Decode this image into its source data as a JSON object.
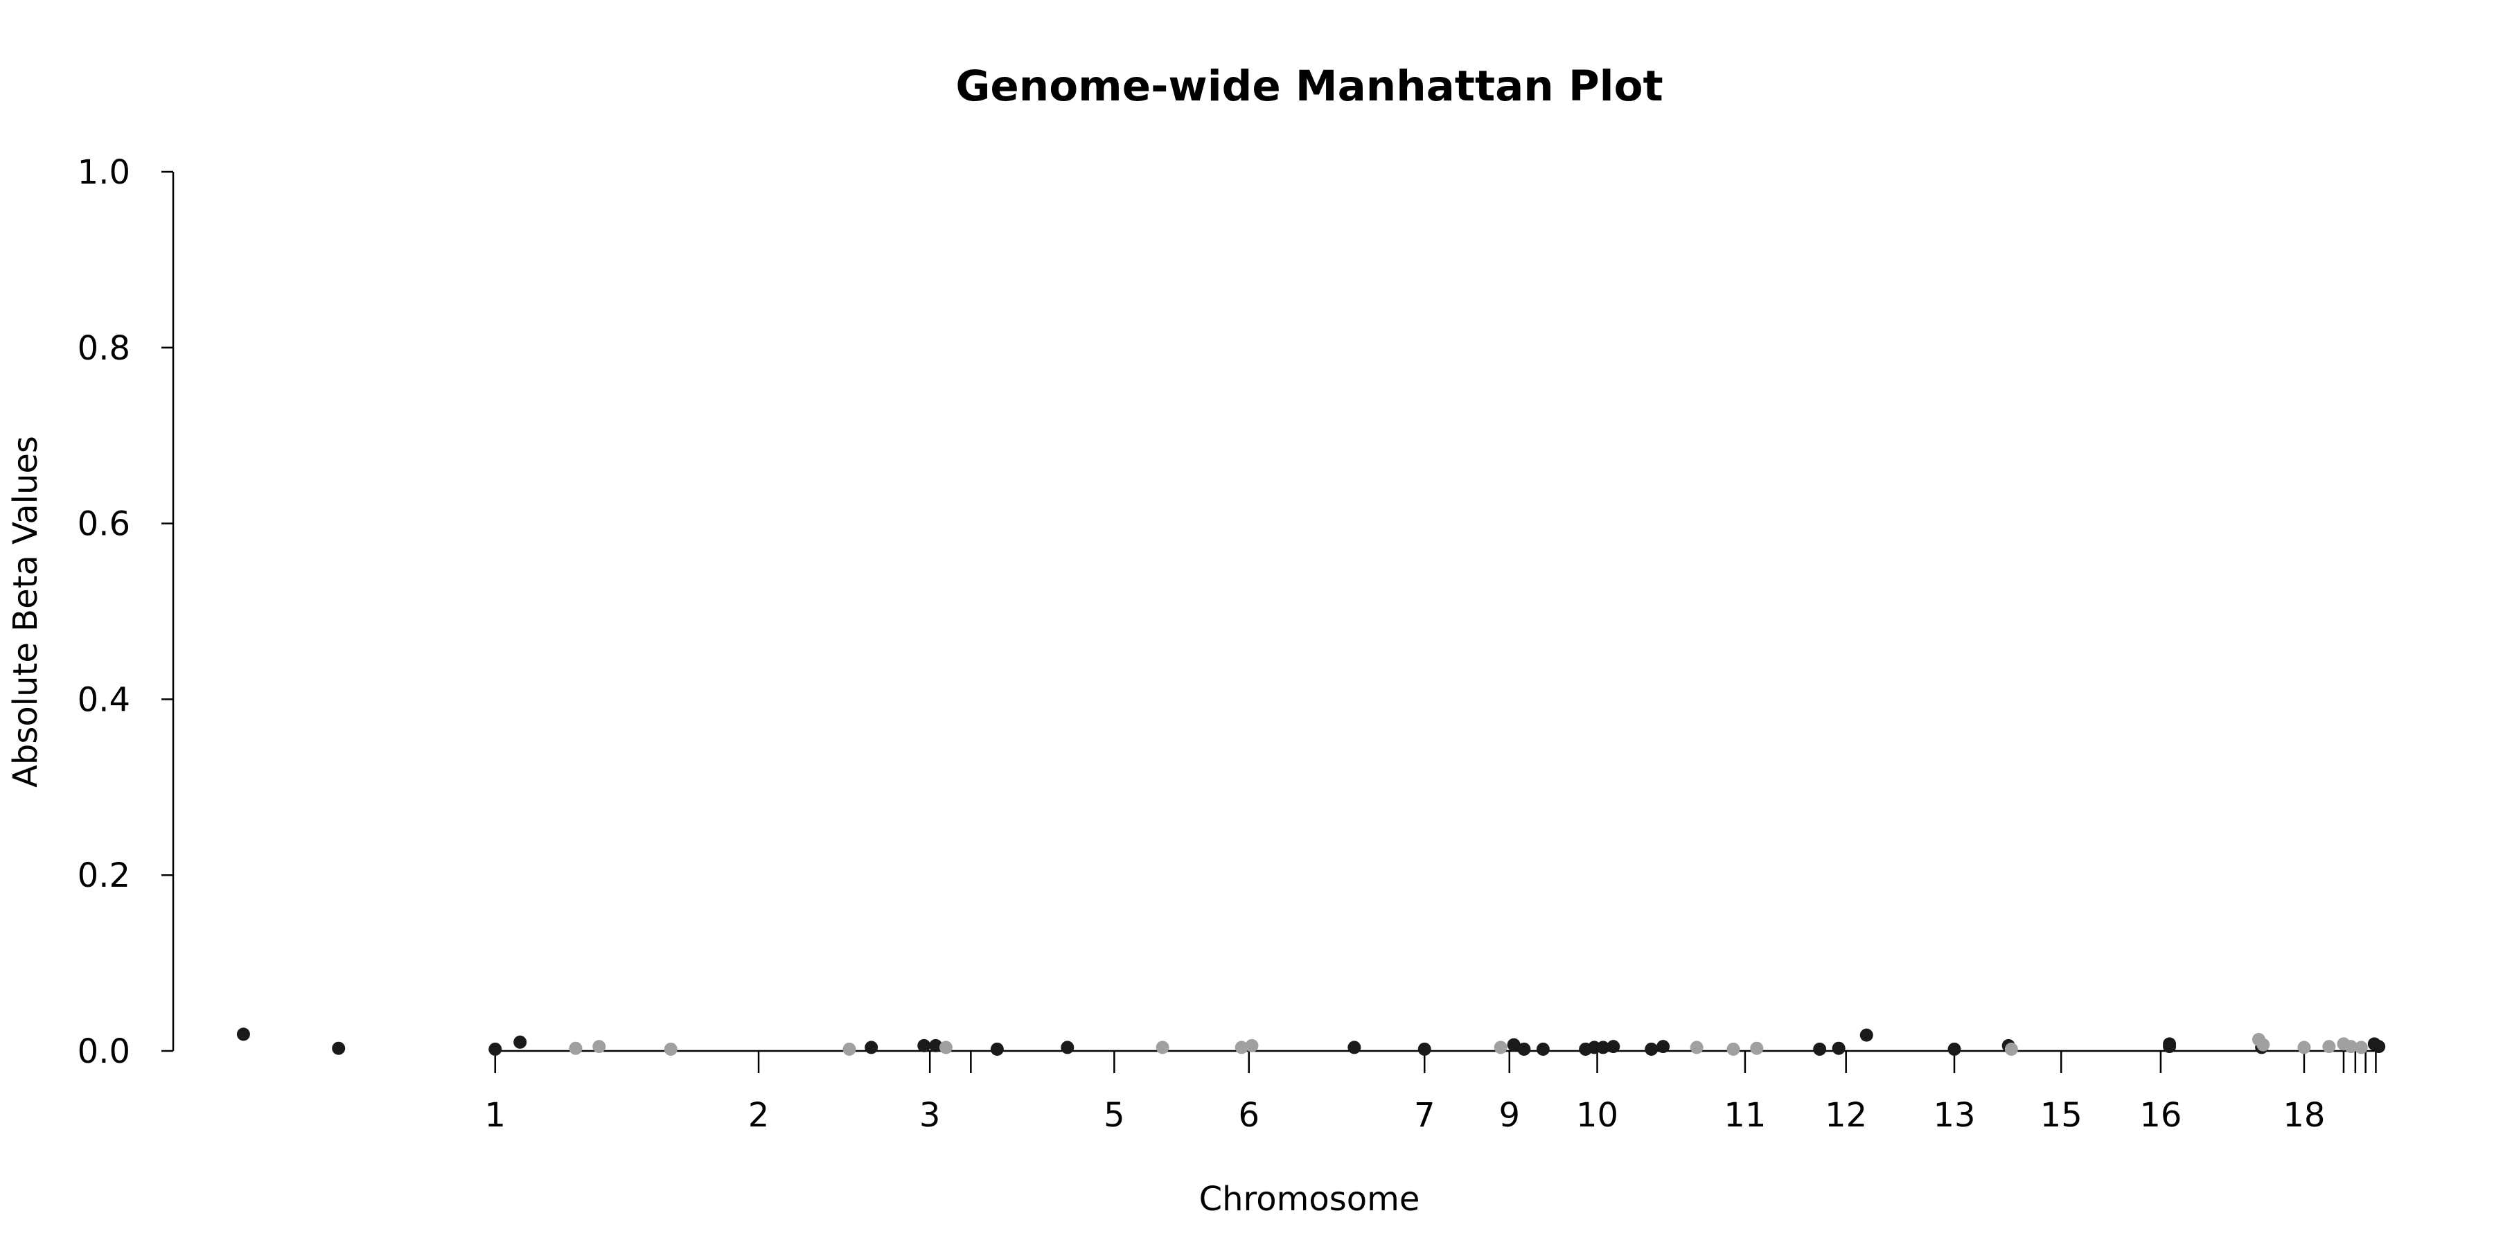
{
  "chart_data": {
    "type": "scatter",
    "title": "Genome-wide Manhattan Plot",
    "xlabel": "Chromosome",
    "ylabel": "Absolute Beta Values",
    "ylim": [
      0,
      1.0
    ],
    "y_ticks": [
      0.0,
      0.2,
      0.4,
      0.6,
      0.8,
      1.0
    ],
    "y_tick_labels": [
      "0.0",
      "0.2",
      "0.4",
      "0.6",
      "0.8",
      "1.0"
    ],
    "x_ticks": [
      {
        "label": "1",
        "x": 0.2
      },
      {
        "label": "2",
        "x": 2.0
      },
      {
        "label": "3",
        "x": 3.17
      },
      {
        "label": "",
        "x": 3.45
      },
      {
        "label": "5",
        "x": 4.43
      },
      {
        "label": "6",
        "x": 5.35
      },
      {
        "label": "7",
        "x": 6.55
      },
      {
        "label": "9",
        "x": 7.13
      },
      {
        "label": "10",
        "x": 7.73
      },
      {
        "label": "11",
        "x": 8.74
      },
      {
        "label": "12",
        "x": 9.43
      },
      {
        "label": "13",
        "x": 10.17
      },
      {
        "label": "15",
        "x": 10.9
      },
      {
        "label": "16",
        "x": 11.58
      },
      {
        "label": "18",
        "x": 12.56
      },
      {
        "label": "",
        "x": 12.83
      },
      {
        "label": "",
        "x": 12.91
      },
      {
        "label": "",
        "x": 12.98
      },
      {
        "label": "",
        "x": 13.05
      }
    ],
    "x_range": [
      -2.0,
      13.1
    ],
    "grid": false,
    "legend": "none",
    "colors": {
      "dark": "#1a1a1a",
      "light": "#a0a0a0"
    },
    "points": [
      {
        "x": -1.52,
        "y": 0.019,
        "c": "dark"
      },
      {
        "x": -0.87,
        "y": 0.003,
        "c": "dark"
      },
      {
        "x": 0.2,
        "y": 0.002,
        "c": "dark"
      },
      {
        "x": 0.37,
        "y": 0.01,
        "c": "dark"
      },
      {
        "x": 0.75,
        "y": 0.003,
        "c": "light"
      },
      {
        "x": 0.91,
        "y": 0.005,
        "c": "light"
      },
      {
        "x": 1.4,
        "y": 0.002,
        "c": "light"
      },
      {
        "x": 2.62,
        "y": 0.002,
        "c": "light"
      },
      {
        "x": 2.77,
        "y": 0.004,
        "c": "dark"
      },
      {
        "x": 3.13,
        "y": 0.006,
        "c": "dark"
      },
      {
        "x": 3.21,
        "y": 0.006,
        "c": "dark"
      },
      {
        "x": 3.28,
        "y": 0.004,
        "c": "light"
      },
      {
        "x": 3.63,
        "y": 0.002,
        "c": "dark"
      },
      {
        "x": 4.11,
        "y": 0.004,
        "c": "dark"
      },
      {
        "x": 4.76,
        "y": 0.004,
        "c": "light"
      },
      {
        "x": 5.3,
        "y": 0.004,
        "c": "light"
      },
      {
        "x": 5.37,
        "y": 0.006,
        "c": "light"
      },
      {
        "x": 6.07,
        "y": 0.004,
        "c": "dark"
      },
      {
        "x": 6.55,
        "y": 0.002,
        "c": "dark"
      },
      {
        "x": 7.07,
        "y": 0.004,
        "c": "light"
      },
      {
        "x": 7.16,
        "y": 0.007,
        "c": "dark"
      },
      {
        "x": 7.23,
        "y": 0.002,
        "c": "dark"
      },
      {
        "x": 7.36,
        "y": 0.002,
        "c": "dark"
      },
      {
        "x": 7.65,
        "y": 0.002,
        "c": "dark"
      },
      {
        "x": 7.71,
        "y": 0.004,
        "c": "dark"
      },
      {
        "x": 7.77,
        "y": 0.004,
        "c": "dark"
      },
      {
        "x": 7.84,
        "y": 0.005,
        "c": "dark"
      },
      {
        "x": 8.1,
        "y": 0.002,
        "c": "dark"
      },
      {
        "x": 8.18,
        "y": 0.005,
        "c": "dark"
      },
      {
        "x": 8.41,
        "y": 0.004,
        "c": "light"
      },
      {
        "x": 8.66,
        "y": 0.002,
        "c": "light"
      },
      {
        "x": 8.82,
        "y": 0.003,
        "c": "light"
      },
      {
        "x": 9.25,
        "y": 0.002,
        "c": "dark"
      },
      {
        "x": 9.38,
        "y": 0.003,
        "c": "dark"
      },
      {
        "x": 9.57,
        "y": 0.018,
        "c": "dark"
      },
      {
        "x": 10.17,
        "y": 0.002,
        "c": "dark"
      },
      {
        "x": 10.54,
        "y": 0.006,
        "c": "dark"
      },
      {
        "x": 10.56,
        "y": 0.002,
        "c": "light"
      },
      {
        "x": 11.64,
        "y": 0.008,
        "c": "dark"
      },
      {
        "x": 11.64,
        "y": 0.005,
        "c": "dark"
      },
      {
        "x": 12.27,
        "y": 0.004,
        "c": "dark"
      },
      {
        "x": 12.25,
        "y": 0.013,
        "c": "light"
      },
      {
        "x": 12.28,
        "y": 0.007,
        "c": "light"
      },
      {
        "x": 12.56,
        "y": 0.004,
        "c": "light"
      },
      {
        "x": 12.73,
        "y": 0.005,
        "c": "light"
      },
      {
        "x": 12.83,
        "y": 0.008,
        "c": "light"
      },
      {
        "x": 12.88,
        "y": 0.005,
        "c": "light"
      },
      {
        "x": 12.95,
        "y": 0.004,
        "c": "light"
      },
      {
        "x": 13.04,
        "y": 0.008,
        "c": "dark"
      },
      {
        "x": 13.07,
        "y": 0.005,
        "c": "dark"
      }
    ]
  }
}
